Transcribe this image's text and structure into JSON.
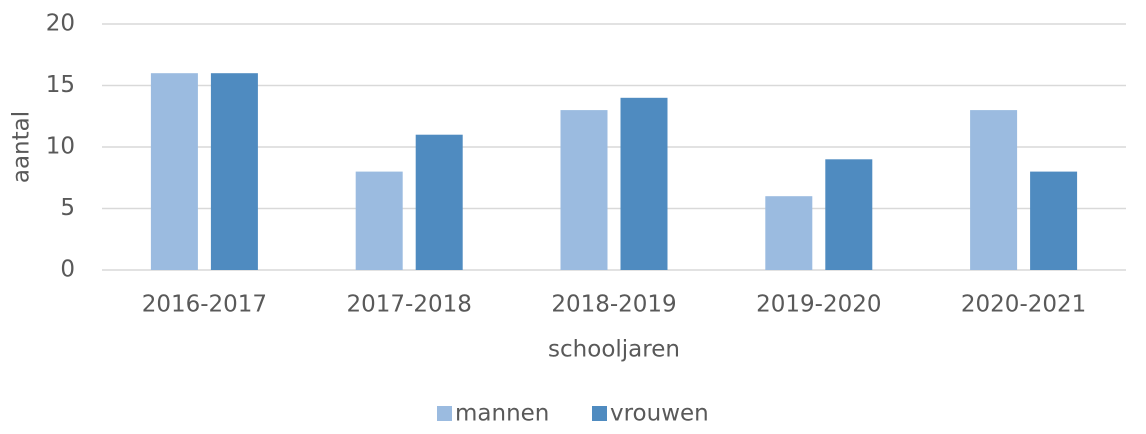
{
  "chart_data": {
    "type": "bar",
    "categories": [
      "2016-2017",
      "2017-2018",
      "2018-2019",
      "2019-2020",
      "2020-2021"
    ],
    "series": [
      {
        "name": "mannen",
        "color": "#9bbbe0",
        "values": [
          16,
          8,
          13,
          6,
          13
        ]
      },
      {
        "name": "vrouwen",
        "color": "#4f8bc0",
        "values": [
          16,
          11,
          14,
          9,
          8
        ]
      }
    ],
    "xlabel": "schooljaren",
    "ylabel": "aantal",
    "ylim": [
      0,
      20
    ],
    "yticks": [
      0,
      5,
      10,
      15,
      20
    ],
    "grid": true,
    "legend": "bottom"
  }
}
